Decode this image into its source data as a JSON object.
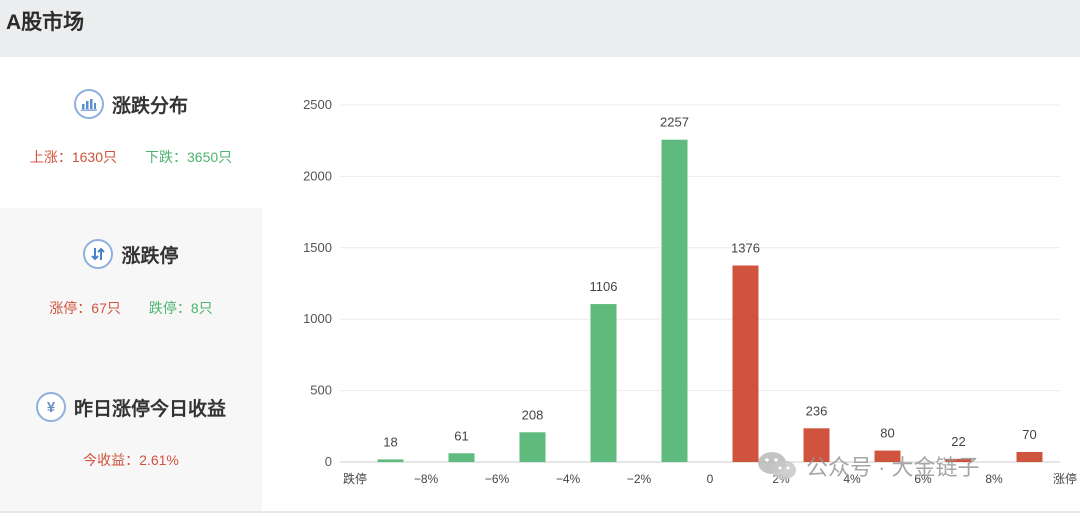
{
  "header": {
    "title": "A股市场"
  },
  "panels": {
    "distribution": {
      "title": "涨跌分布",
      "rise_label": "上涨：1630只",
      "fall_label": "下跌：3650只",
      "icon": "bar-chart-icon"
    },
    "limit": {
      "title": "涨跌停",
      "up_label": "涨停：67只",
      "down_label": "跌停：8只",
      "icon": "up-down-arrows-icon"
    },
    "yesterday": {
      "title": "昨日涨停今日收益",
      "return_label": "今收益：2.61%",
      "icon": "yen-icon"
    }
  },
  "colors": {
    "rise": "#d0533d",
    "fall": "#5fba7d",
    "accent_icon": "#8fb0dc"
  },
  "watermark": {
    "text": "公众号 · 大金链子",
    "icon": "wechat-icon"
  },
  "chart_data": {
    "type": "bar",
    "categories": [
      "跌停",
      "",
      "−8%",
      "",
      "−6%",
      "",
      "−4%",
      "",
      "−2%",
      "",
      "0",
      "",
      "2%",
      "",
      "4%",
      "",
      "6%",
      "",
      "8%",
      "",
      "涨停"
    ],
    "bars": [
      {
        "value": 18,
        "slot": 1,
        "color": "fall"
      },
      {
        "value": 61,
        "slot": 3,
        "color": "fall"
      },
      {
        "value": 208,
        "slot": 5,
        "color": "fall"
      },
      {
        "value": 1106,
        "slot": 7,
        "color": "fall"
      },
      {
        "value": 2257,
        "slot": 9,
        "color": "fall"
      },
      {
        "value": 1376,
        "slot": 11,
        "color": "rise"
      },
      {
        "value": 236,
        "slot": 13,
        "color": "rise"
      },
      {
        "value": 80,
        "slot": 15,
        "color": "rise"
      },
      {
        "value": 22,
        "slot": 17,
        "color": "rise"
      },
      {
        "value": 70,
        "slot": 19,
        "color": "rise"
      }
    ],
    "yticks": [
      0,
      500,
      1000,
      1500,
      2000,
      2500
    ],
    "ylim": [
      0,
      2500
    ],
    "grid": true
  }
}
